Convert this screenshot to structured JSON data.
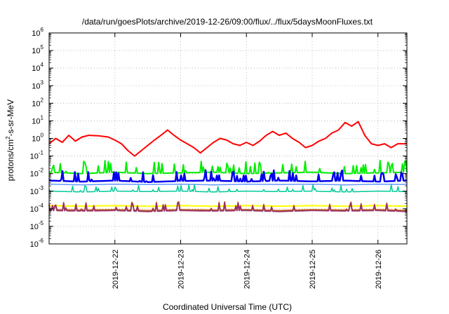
{
  "chart_data": {
    "type": "line",
    "title": "/data/run/goesPlots/archive/2019-12-26/09:00/flux/../flux/5daysMoonFluxes.txt",
    "xlabel": "Coordinated Universal Time (UTC)",
    "ylabel": {
      "base": "protons/cm",
      "sup": "2",
      "rest": "-s-sr-MeV"
    },
    "y_scale": "log",
    "ylim_exp": [
      -6,
      6
    ],
    "y_ticks": [
      {
        "exp": -6,
        "label": "-6"
      },
      {
        "exp": -5,
        "label": "-5"
      },
      {
        "exp": -4,
        "label": "-4"
      },
      {
        "exp": -3,
        "label": "-3"
      },
      {
        "exp": -2,
        "label": "-2"
      },
      {
        "exp": -1,
        "label": "-1"
      },
      {
        "exp": 0,
        "label": "0"
      },
      {
        "exp": 1,
        "label": "1"
      },
      {
        "exp": 2,
        "label": "2"
      },
      {
        "exp": 3,
        "label": "3"
      },
      {
        "exp": 4,
        "label": "4"
      },
      {
        "exp": 5,
        "label": "5"
      },
      {
        "exp": 6,
        "label": "6"
      }
    ],
    "y_tick_base": "10",
    "x_ticks": [
      {
        "day": 1,
        "label": "2019-12-22"
      },
      {
        "day": 2,
        "label": "2019-12-23"
      },
      {
        "day": 3,
        "label": "2019-12-24"
      },
      {
        "day": 4,
        "label": "2019-12-25"
      },
      {
        "day": 5,
        "label": "2019-12-26"
      }
    ],
    "xlim_days": [
      0,
      5.44
    ],
    "grid": true,
    "series": [
      {
        "color": "#ff0000",
        "width": 2,
        "spikes": 0,
        "spike_amp": 0,
        "x": [
          0,
          0.1,
          0.2,
          0.3,
          0.4,
          0.5,
          0.6,
          0.75,
          0.9,
          1.0,
          1.1,
          1.2,
          1.3,
          1.4,
          1.5,
          1.6,
          1.7,
          1.8,
          1.9,
          2.0,
          2.1,
          2.2,
          2.3,
          2.4,
          2.5,
          2.6,
          2.7,
          2.8,
          2.9,
          3.0,
          3.1,
          3.2,
          3.3,
          3.4,
          3.5,
          3.6,
          3.7,
          3.8,
          3.9,
          4.0,
          4.1,
          4.2,
          4.3,
          4.4,
          4.5,
          4.6,
          4.7,
          4.8,
          4.9,
          5.0,
          5.1,
          5.2,
          5.3,
          5.44
        ],
        "y": [
          0.5,
          1.0,
          0.6,
          1.5,
          0.7,
          1.2,
          1.5,
          1.4,
          1.2,
          0.8,
          0.5,
          0.2,
          0.1,
          0.2,
          0.4,
          0.8,
          1.5,
          3.0,
          1.5,
          0.8,
          0.5,
          0.3,
          0.15,
          0.3,
          0.6,
          1.0,
          0.8,
          0.5,
          0.4,
          0.6,
          0.4,
          0.7,
          1.5,
          2.5,
          1.5,
          2.0,
          1.0,
          0.6,
          0.3,
          0.4,
          0.7,
          1.0,
          2.0,
          3.0,
          8.0,
          5.0,
          9.0,
          1.5,
          0.5,
          0.4,
          0.5,
          0.3,
          0.5,
          0.5
        ]
      },
      {
        "color": "#00ee00",
        "width": 2,
        "spikes": 70,
        "spike_amp": 5,
        "seed": 11,
        "x": [
          0,
          0.5,
          1.0,
          1.5,
          2.0,
          2.5,
          3.0,
          3.5,
          4.0,
          4.5,
          5.0,
          5.44
        ],
        "y": [
          0.012,
          0.01,
          0.012,
          0.01,
          0.011,
          0.012,
          0.01,
          0.011,
          0.012,
          0.01,
          0.011,
          0.012
        ]
      },
      {
        "color": "#0000ee",
        "width": 2.5,
        "spikes": 60,
        "spike_amp": 4,
        "seed": 23,
        "x": [
          0,
          0.5,
          1.0,
          1.5,
          2.0,
          2.5,
          3.0,
          3.5,
          4.0,
          4.5,
          5.0,
          5.44
        ],
        "y": [
          0.004,
          0.0035,
          0.004,
          0.0033,
          0.0038,
          0.004,
          0.0035,
          0.004,
          0.0036,
          0.004,
          0.0035,
          0.004
        ]
      },
      {
        "color": "#6699ff",
        "width": 1.5,
        "spikes": 0,
        "spike_amp": 0,
        "x": [
          0,
          0.5,
          1.0,
          1.5,
          2.0,
          2.5,
          3.0,
          3.5,
          4.0,
          4.5,
          5.0,
          5.44
        ],
        "y": [
          0.0025,
          0.0023,
          0.0025,
          0.0024,
          0.0025,
          0.0023,
          0.0025,
          0.0024,
          0.0025,
          0.0023,
          0.0025,
          0.0024
        ]
      },
      {
        "color": "#00cc99",
        "width": 1.5,
        "spikes": 40,
        "spike_amp": 2.5,
        "seed": 37,
        "x": [
          0,
          0.5,
          1.0,
          1.5,
          2.0,
          2.5,
          3.0,
          3.5,
          4.0,
          4.5,
          5.0,
          5.44
        ],
        "y": [
          0.001,
          0.0009,
          0.001,
          0.00095,
          0.001,
          0.0009,
          0.001,
          0.00095,
          0.001,
          0.0009,
          0.001,
          0.00095
        ]
      },
      {
        "color": "#ffff00",
        "width": 2,
        "spikes": 0,
        "spike_amp": 0,
        "x": [
          0,
          0.5,
          1.0,
          1.5,
          2.0,
          2.5,
          3.0,
          3.5,
          4.0,
          4.5,
          5.0,
          5.44
        ],
        "y": [
          0.00015,
          0.00014,
          0.00015,
          0.00014,
          0.00015,
          0.00014,
          0.00015,
          0.00014,
          0.00015,
          0.00014,
          0.00015,
          0.00014
        ]
      },
      {
        "color": "#cc6600",
        "width": 1.5,
        "spikes": 45,
        "spike_amp": 3,
        "seed": 53,
        "x": [
          0,
          0.5,
          1.0,
          1.5,
          2.0,
          2.5,
          3.0,
          3.5,
          4.0,
          4.5,
          5.0,
          5.44
        ],
        "y": [
          9e-05,
          8.5e-05,
          9e-05,
          8e-05,
          9e-05,
          8.5e-05,
          9e-05,
          8e-05,
          9e-05,
          8.5e-05,
          9e-05,
          8e-05
        ]
      },
      {
        "color": "#993366",
        "width": 2,
        "spikes": 45,
        "spike_amp": 3,
        "seed": 53,
        "x": [
          0,
          0.5,
          1.0,
          1.5,
          2.0,
          2.5,
          3.0,
          3.5,
          4.0,
          4.5,
          5.0,
          5.44
        ],
        "y": [
          8e-05,
          7.5e-05,
          8e-05,
          7e-05,
          8e-05,
          7.5e-05,
          8e-05,
          7e-05,
          8e-05,
          7.5e-05,
          8e-05,
          7e-05
        ]
      }
    ]
  }
}
